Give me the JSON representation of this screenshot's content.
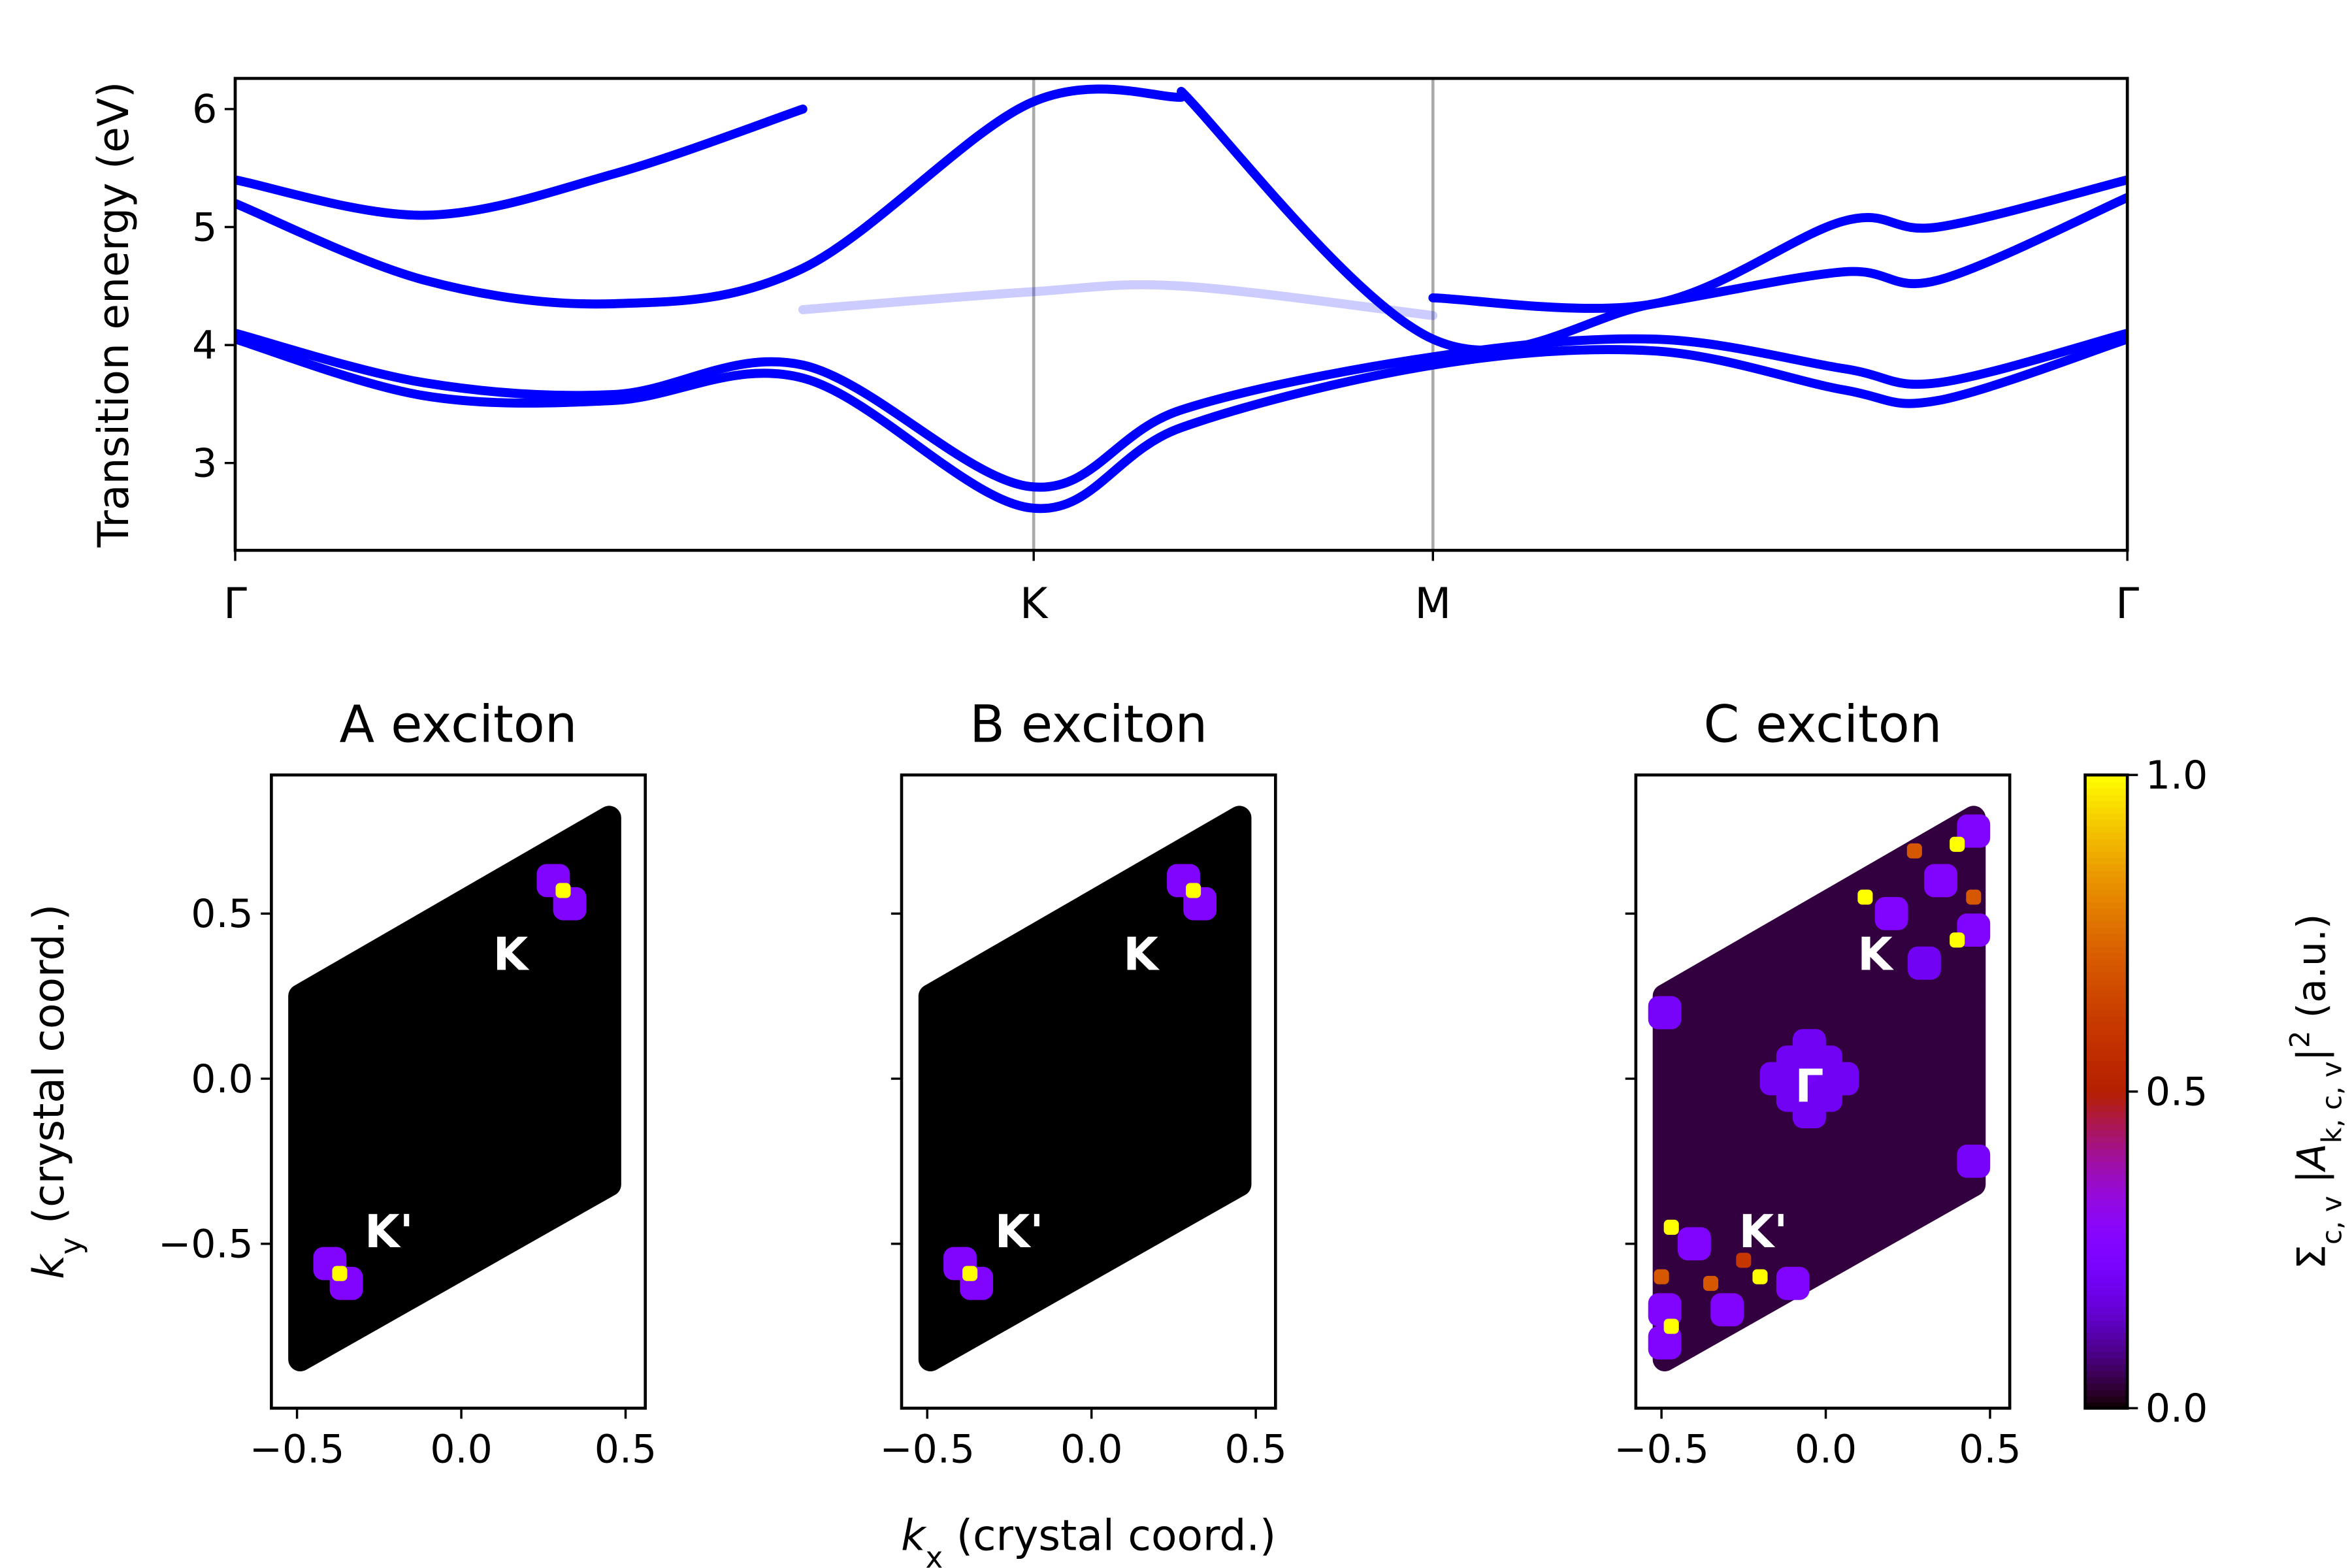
{
  "chart_data": [
    {
      "type": "line",
      "ylabel": "Transition energy (eV)",
      "x": [
        0,
        0.1,
        0.2,
        0.3,
        0.42,
        0.5,
        0.633,
        0.75,
        0.85,
        0.9,
        1
      ],
      "xlim": [
        0,
        1
      ],
      "xticks": [
        {
          "value": 0,
          "label": "Γ"
        },
        {
          "value": 0.422,
          "label": "K"
        },
        {
          "value": 0.633,
          "label": "M"
        },
        {
          "value": 1,
          "label": "Γ"
        }
      ],
      "vlines": true,
      "ylim": [
        2.26,
        6.26
      ],
      "yticks": [
        3,
        4,
        5,
        6
      ],
      "series": [
        {
          "color": "#0000ff",
          "opacity": 1,
          "values": [
            4.05,
            3.57,
            3.53,
            3.72,
            2.62,
            3.3,
            3.83,
            3.95,
            3.62,
            3.53,
            4.05
          ]
        },
        {
          "color": "#0000ff",
          "opacity": 1,
          "values": [
            4.1,
            3.68,
            3.58,
            3.83,
            2.8,
            3.45,
            3.9,
            4.05,
            3.8,
            3.68,
            4.1
          ]
        },
        {
          "color": "#0000ff",
          "opacity": 1,
          "values": [
            5.2,
            4.55,
            4.35,
            4.65,
            6.05,
            6.1,
            null,
            null,
            null,
            null,
            null
          ]
        },
        {
          "color": "#0000ff",
          "opacity": 1,
          "values": [
            null,
            null,
            null,
            null,
            null,
            6.15,
            4.05,
            4.35,
            4.62,
            4.55,
            5.25
          ]
        },
        {
          "color": "#0000ff",
          "opacity": 1,
          "values": [
            5.4,
            5.1,
            5.45,
            6.0,
            null,
            null,
            4.4,
            4.35,
            5.05,
            5.0,
            5.4
          ]
        },
        {
          "color": "#0000ff",
          "opacity": 0.2,
          "values": [
            null,
            null,
            null,
            4.3,
            4.45,
            4.5,
            4.25,
            null,
            null,
            null,
            null
          ]
        }
      ]
    },
    {
      "type": "map",
      "title": "A exciton",
      "cmap": "gnuplot",
      "ylabel": [
        {
          "text": "k",
          "style": "italic"
        },
        {
          "text": "y",
          "style": "sub"
        },
        {
          "text": " (crystal coord.)",
          "style": "normal"
        }
      ],
      "xlim": [
        -0.578,
        0.56
      ],
      "ylim": [
        -0.998,
        0.92
      ],
      "xticks": [
        {
          "value": -0.5,
          "label": "−0.5"
        },
        {
          "value": 0,
          "label": "0.0"
        },
        0.5
      ],
      "yticks": [
        {
          "value": -0.5,
          "label": "−0.5"
        },
        {
          "value": 0,
          "label": "0.0"
        },
        0.5
      ],
      "show_ytick_labels": true,
      "zone": {
        "x": [
          -0.49,
          0.45,
          0.45,
          -0.49
        ],
        "y": [
          0.25,
          0.79,
          -0.32,
          -0.85
        ],
        "value": 0
      },
      "points": {
        "x": [
          0.28,
          0.33,
          0.31,
          -0.4,
          -0.35,
          -0.37
        ],
        "y": [
          0.6,
          0.53,
          0.57,
          -0.56,
          -0.62,
          -0.59
        ],
        "values": [
          0.25,
          0.25,
          1,
          0.25,
          0.25,
          1
        ]
      },
      "annotations": [
        {
          "text": "K",
          "x": 0.15,
          "y": 0.38
        },
        {
          "text": "K'",
          "x": -0.22,
          "y": -0.46
        }
      ]
    },
    {
      "type": "map",
      "title": "B exciton",
      "cmap": "gnuplot",
      "xlabel": [
        {
          "text": "k",
          "style": "italic"
        },
        {
          "text": "x",
          "style": "sub"
        },
        {
          "text": " (crystal coord.)",
          "style": "normal"
        }
      ],
      "xlim": [
        -0.578,
        0.56
      ],
      "ylim": [
        -0.998,
        0.92
      ],
      "xticks": [
        {
          "value": -0.5,
          "label": "−0.5"
        },
        {
          "value": 0,
          "label": "0.0"
        },
        0.5
      ],
      "yticks": [
        -0.5,
        0,
        0.5
      ],
      "show_ytick_labels": false,
      "zone": {
        "x": [
          -0.49,
          0.45,
          0.45,
          -0.49
        ],
        "y": [
          0.25,
          0.79,
          -0.32,
          -0.85
        ],
        "value": 0
      },
      "points": {
        "x": [
          0.28,
          0.33,
          0.31,
          -0.4,
          -0.35,
          -0.37
        ],
        "y": [
          0.6,
          0.53,
          0.57,
          -0.56,
          -0.62,
          -0.59
        ],
        "values": [
          0.25,
          0.25,
          1,
          0.25,
          0.25,
          1
        ]
      },
      "annotations": [
        {
          "text": "K",
          "x": 0.15,
          "y": 0.38
        },
        {
          "text": "K'",
          "x": -0.22,
          "y": -0.46
        }
      ]
    },
    {
      "type": "map",
      "title": "C exciton",
      "cmap": "gnuplot",
      "xlim": [
        -0.578,
        0.56
      ],
      "ylim": [
        -0.998,
        0.92
      ],
      "xticks": [
        {
          "value": -0.5,
          "label": "−0.5"
        },
        {
          "value": 0,
          "label": "0.0"
        },
        0.5
      ],
      "yticks": [
        -0.5,
        0,
        0.5
      ],
      "show_ytick_labels": false,
      "zone": {
        "x": [
          -0.49,
          0.45,
          0.45,
          -0.49
        ],
        "y": [
          0.25,
          0.79,
          -0.32,
          -0.85
        ],
        "value": 0.04
      },
      "points": {
        "x": [
          -0.05,
          0.0,
          -0.1,
          0.0,
          -0.1,
          -0.05,
          -0.05,
          0.05,
          -0.15,
          -0.49,
          -0.49,
          -0.49,
          0.45,
          0.45,
          0.45,
          0.2,
          0.35,
          -0.4,
          -0.3,
          -0.1,
          0.3,
          0.12,
          0.4,
          0.4,
          -0.2,
          -0.47,
          -0.47,
          0.27,
          0.45,
          -0.5,
          -0.35,
          -0.25
        ],
        "y": [
          0.0,
          0.05,
          -0.05,
          -0.05,
          0.05,
          0.1,
          -0.1,
          0.0,
          0.0,
          0.2,
          -0.7,
          -0.8,
          0.75,
          0.45,
          -0.25,
          0.5,
          0.6,
          -0.5,
          -0.7,
          -0.62,
          0.35,
          0.55,
          0.71,
          0.42,
          -0.6,
          -0.45,
          -0.75,
          0.69,
          0.55,
          -0.6,
          -0.62,
          -0.55
        ],
        "values": [
          0.22,
          0.2,
          0.2,
          0.2,
          0.2,
          0.2,
          0.2,
          0.2,
          0.2,
          0.22,
          0.25,
          0.25,
          0.25,
          0.25,
          0.22,
          0.25,
          0.25,
          0.25,
          0.25,
          0.25,
          0.2,
          1,
          1,
          1,
          1,
          1,
          1,
          0.7,
          0.7,
          0.7,
          0.7,
          0.6
        ]
      },
      "annotations": [
        {
          "text": "K",
          "x": 0.15,
          "y": 0.38
        },
        {
          "text": "K'",
          "x": -0.19,
          "y": -0.46
        },
        {
          "text": "Γ",
          "x": -0.05,
          "y": -0.02
        }
      ],
      "colorbar": {
        "lim": [
          0,
          1
        ],
        "ticks": [
          {
            "value": 0,
            "label": "0.0"
          },
          {
            "value": 0.5,
            "label": "0.5"
          },
          {
            "value": 1,
            "label": "1.0"
          }
        ],
        "label": [
          {
            "text": "Σ",
            "style": "normal"
          },
          {
            "text": "c, v",
            "style": "sub"
          },
          {
            "text": " |",
            "style": "normal"
          },
          {
            "text": "A",
            "style": "italic"
          },
          {
            "text": "k, c, v",
            "style": "sub"
          },
          {
            "text": "|",
            "style": "normal"
          },
          {
            "text": "2",
            "style": "sup"
          },
          {
            "text": " (a.u.)",
            "style": "normal"
          }
        ]
      }
    }
  ]
}
